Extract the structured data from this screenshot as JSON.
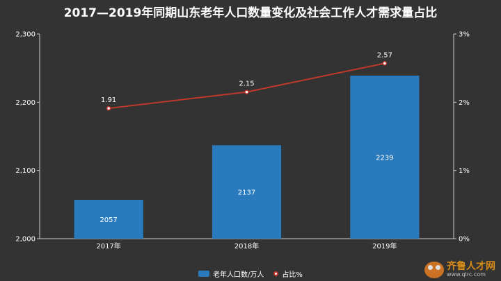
{
  "colors": {
    "background": "#333333",
    "bar": "#2a7bbd",
    "line": "#c0392b",
    "point_fill": "#ffffff",
    "axis": "#cccccc",
    "text": "#ffffff"
  },
  "chart_data": {
    "type": "bar",
    "title": "2017—2019年同期山东老年人口数量变化及社会工作人才需求量占比",
    "categories": [
      "2017年",
      "2018年",
      "2019年"
    ],
    "series": [
      {
        "name": "老年人口数/万人",
        "type": "bar",
        "axis": "left",
        "values": [
          2057,
          2137,
          2239
        ]
      },
      {
        "name": "占比%",
        "type": "line",
        "axis": "right",
        "values": [
          1.91,
          2.15,
          2.57
        ]
      }
    ],
    "left_axis": {
      "ylim": [
        2000,
        2300
      ],
      "ticks": [
        "2,000",
        "2,100",
        "2,200",
        "2,300"
      ]
    },
    "right_axis": {
      "ylim": [
        0,
        3
      ],
      "ticks": [
        "0%",
        "1%",
        "2%",
        "3%"
      ]
    },
    "grid": false,
    "legend_position": "bottom"
  },
  "watermark": {
    "name": "齐鲁人才网",
    "url": "www.qlrc.com"
  }
}
